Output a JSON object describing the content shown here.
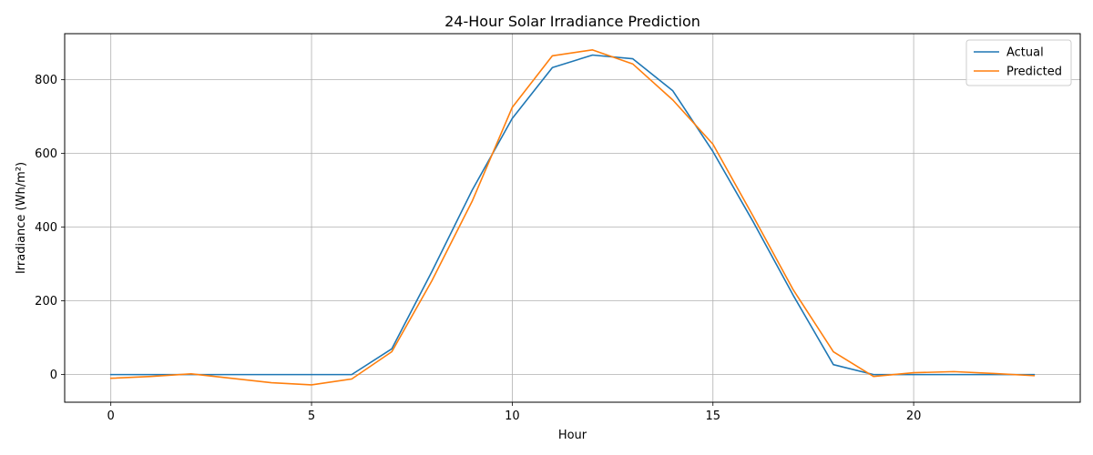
{
  "chart_data": {
    "type": "line",
    "title": "24-Hour Solar Irradiance Prediction",
    "xlabel": "Hour",
    "ylabel": "Irradiance (Wh/m²)",
    "xlim": [
      -1.15,
      24.15
    ],
    "ylim": [
      -75,
      925
    ],
    "x_ticks": [
      0,
      5,
      10,
      15,
      20
    ],
    "y_ticks": [
      0,
      200,
      400,
      600,
      800
    ],
    "grid": true,
    "legend_position": "top-right",
    "x": [
      0,
      1,
      2,
      3,
      4,
      5,
      6,
      7,
      8,
      9,
      10,
      11,
      12,
      13,
      14,
      15,
      16,
      17,
      18,
      19,
      20,
      21,
      22,
      23
    ],
    "series": [
      {
        "name": "Actual",
        "color": "#1f77b4",
        "values": [
          0,
          0,
          0,
          0,
          0,
          0,
          0,
          70,
          280,
          500,
          695,
          833,
          867,
          857,
          770,
          605,
          415,
          215,
          27,
          0,
          0,
          0,
          0,
          0
        ]
      },
      {
        "name": "Predicted",
        "color": "#ff7f0e",
        "values": [
          -10,
          -5,
          2,
          -10,
          -22,
          -28,
          -12,
          62,
          255,
          470,
          725,
          865,
          881,
          843,
          745,
          625,
          430,
          230,
          62,
          -5,
          5,
          8,
          3,
          -3
        ]
      }
    ]
  }
}
